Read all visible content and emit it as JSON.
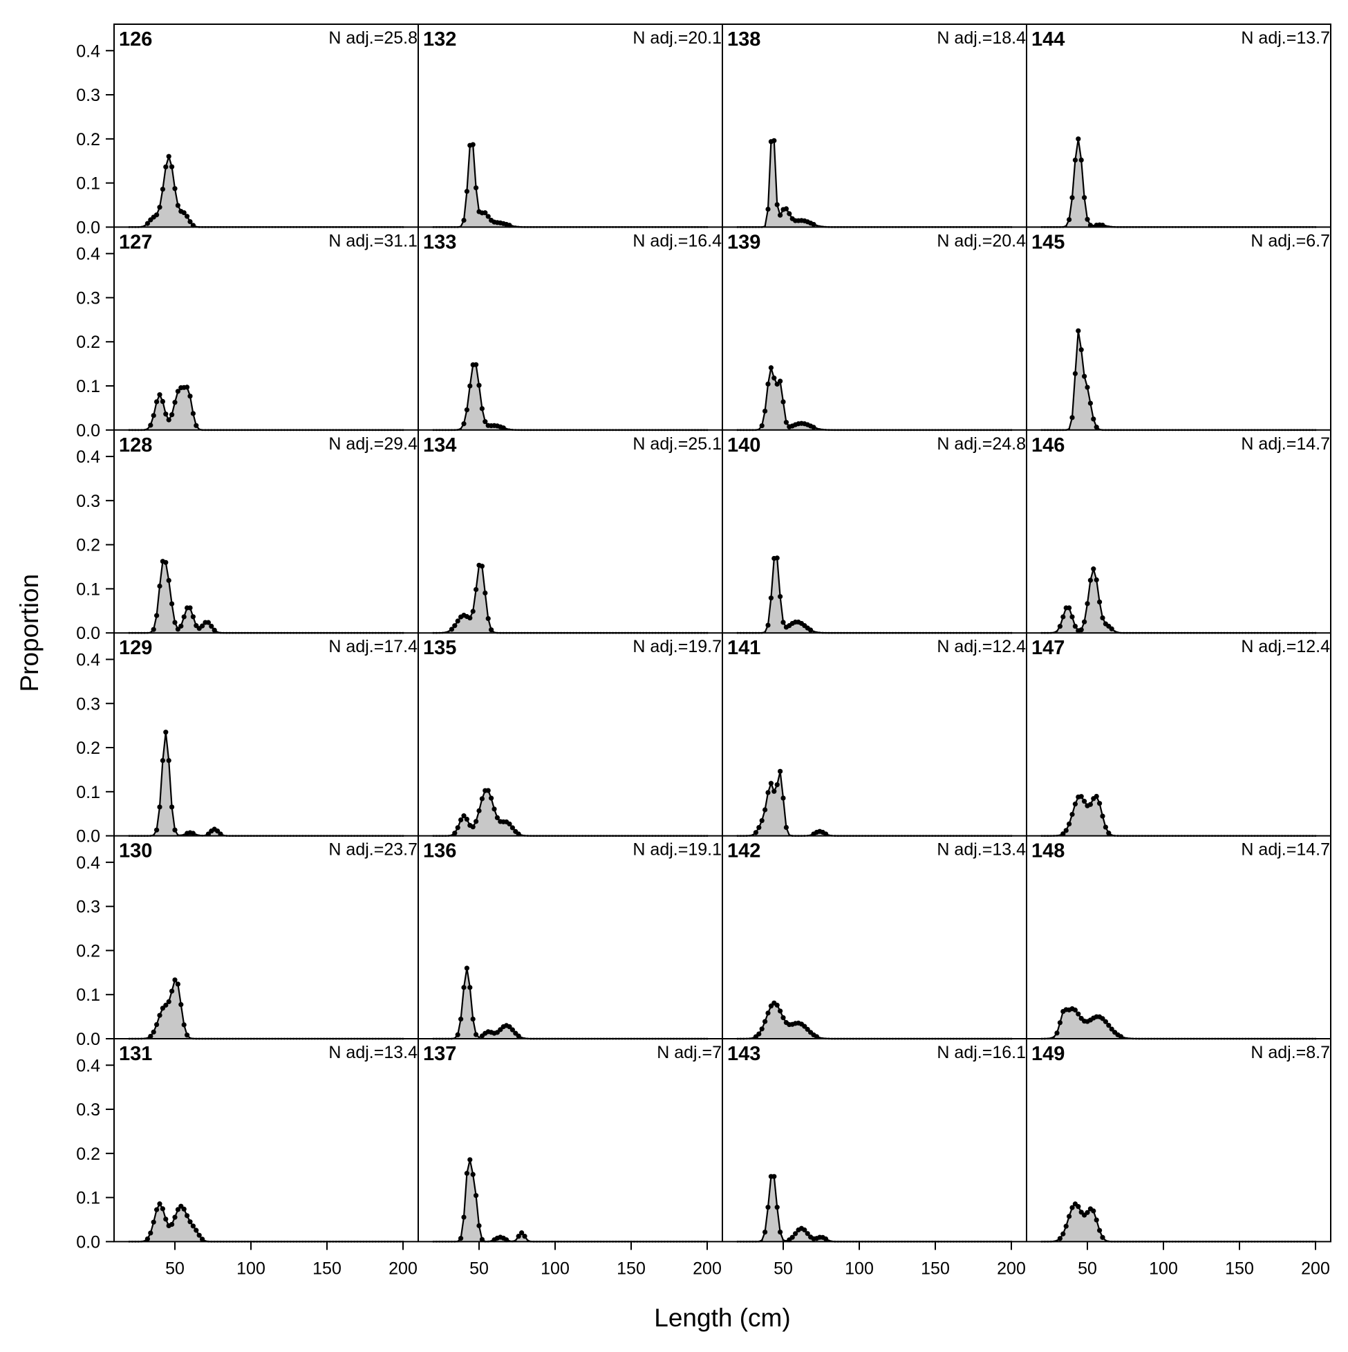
{
  "chart_data": {
    "type": "area",
    "ylabel": "Proportion",
    "xlabel": "Length (cm)",
    "x_ticks": [
      50,
      100,
      150,
      200
    ],
    "y_ticks": [
      0.0,
      0.1,
      0.2,
      0.3,
      0.4
    ],
    "y_tick_labels": [
      "0.0",
      "0.1",
      "0.2",
      "0.3",
      "0.4"
    ],
    "xlim": [
      10,
      210
    ],
    "ylim": [
      0,
      0.46
    ],
    "x_range": [
      20,
      200
    ],
    "x_step": 2,
    "fill_color": "#c8c8c8",
    "line_color": "#000000",
    "panels": [
      {
        "id": "126",
        "nadj": "N adj.=25.8",
        "peaks": [
          [
            46,
            0.16,
            3.5
          ],
          [
            36,
            0.02,
            3
          ],
          [
            56,
            0.03,
            3
          ]
        ]
      },
      {
        "id": "127",
        "nadj": "N adj.=31.1",
        "peaks": [
          [
            40,
            0.08,
            3
          ],
          [
            53,
            0.09,
            3.5
          ],
          [
            59,
            0.07,
            2.5
          ]
        ]
      },
      {
        "id": "128",
        "nadj": "N adj.=29.4",
        "peaks": [
          [
            42,
            0.14,
            2.5
          ],
          [
            46,
            0.08,
            2.5
          ],
          [
            59,
            0.06,
            3
          ],
          [
            71,
            0.025,
            3
          ]
        ]
      },
      {
        "id": "129",
        "nadj": "N adj.=17.4",
        "peaks": [
          [
            44,
            0.235,
            2.5
          ],
          [
            76,
            0.015,
            2.5
          ],
          [
            60,
            0.007,
            3
          ]
        ]
      },
      {
        "id": "130",
        "nadj": "N adj.=23.7",
        "peaks": [
          [
            51,
            0.125,
            3
          ],
          [
            43,
            0.07,
            4
          ]
        ]
      },
      {
        "id": "131",
        "nadj": "N adj.=13.4",
        "peaks": [
          [
            40,
            0.085,
            3.5
          ],
          [
            54,
            0.08,
            4.5
          ],
          [
            63,
            0.02,
            3
          ]
        ]
      },
      {
        "id": "132",
        "nadj": "N adj.=20.1",
        "peaks": [
          [
            45,
            0.205,
            2.2
          ],
          [
            53,
            0.03,
            3
          ],
          [
            62,
            0.01,
            6
          ]
        ]
      },
      {
        "id": "133",
        "nadj": "N adj.=16.4",
        "peaks": [
          [
            47,
            0.155,
            3.2
          ],
          [
            60,
            0.01,
            5
          ]
        ]
      },
      {
        "id": "134",
        "nadj": "N adj.=25.1",
        "peaks": [
          [
            51,
            0.16,
            2.8
          ],
          [
            40,
            0.04,
            4.5
          ]
        ]
      },
      {
        "id": "135",
        "nadj": "N adj.=19.7",
        "peaks": [
          [
            55,
            0.105,
            4.5
          ],
          [
            40,
            0.045,
            3
          ],
          [
            68,
            0.03,
            4
          ]
        ]
      },
      {
        "id": "136",
        "nadj": "N adj.=19.1",
        "peaks": [
          [
            42,
            0.16,
            2.5
          ],
          [
            68,
            0.03,
            4.5
          ],
          [
            56,
            0.015,
            3
          ]
        ]
      },
      {
        "id": "137",
        "nadj": "N adj.=7",
        "peaks": [
          [
            43,
            0.17,
            2
          ],
          [
            47,
            0.11,
            2
          ],
          [
            78,
            0.02,
            2
          ],
          [
            64,
            0.01,
            3
          ]
        ]
      },
      {
        "id": "138",
        "nadj": "N adj.=18.4",
        "peaks": [
          [
            43,
            0.235,
            1.6
          ],
          [
            51,
            0.04,
            3
          ],
          [
            62,
            0.015,
            6
          ]
        ]
      },
      {
        "id": "139",
        "nadj": "N adj.=20.4",
        "peaks": [
          [
            42,
            0.14,
            2.6
          ],
          [
            48,
            0.1,
            2
          ],
          [
            62,
            0.015,
            6
          ]
        ]
      },
      {
        "id": "140",
        "nadj": "N adj.=24.8",
        "peaks": [
          [
            45,
            0.185,
            2.3
          ],
          [
            59,
            0.025,
            5.5
          ]
        ]
      },
      {
        "id": "141",
        "nadj": "N adj.=12.4",
        "peaks": [
          [
            42,
            0.11,
            2.5
          ],
          [
            48,
            0.14,
            2
          ],
          [
            37,
            0.03,
            3
          ],
          [
            74,
            0.01,
            3
          ]
        ]
      },
      {
        "id": "142",
        "nadj": "N adj.=13.4",
        "peaks": [
          [
            44,
            0.08,
            5
          ],
          [
            60,
            0.035,
            6
          ]
        ]
      },
      {
        "id": "143",
        "nadj": "N adj.=16.1",
        "peaks": [
          [
            43,
            0.16,
            2.5
          ],
          [
            62,
            0.03,
            4
          ],
          [
            75,
            0.01,
            3
          ]
        ]
      },
      {
        "id": "144",
        "nadj": "N adj.=13.7",
        "peaks": [
          [
            44,
            0.2,
            2.7
          ],
          [
            58,
            0.005,
            4
          ]
        ]
      },
      {
        "id": "145",
        "nadj": "N adj.=6.7",
        "peaks": [
          [
            44,
            0.2,
            2
          ],
          [
            49,
            0.1,
            3
          ]
        ]
      },
      {
        "id": "146",
        "nadj": "N adj.=14.7",
        "peaks": [
          [
            37,
            0.06,
            3
          ],
          [
            54,
            0.145,
            3.2
          ],
          [
            63,
            0.015,
            3
          ]
        ]
      },
      {
        "id": "147",
        "nadj": "N adj.=12.4",
        "peaks": [
          [
            45,
            0.09,
            4.5
          ],
          [
            56,
            0.085,
            3.5
          ]
        ]
      },
      {
        "id": "148",
        "nadj": "N adj.=14.7",
        "peaks": [
          [
            40,
            0.065,
            5
          ],
          [
            57,
            0.05,
            7
          ],
          [
            34,
            0.03,
            2
          ]
        ]
      },
      {
        "id": "149",
        "nadj": "N adj.=8.7",
        "peaks": [
          [
            42,
            0.085,
            4.5
          ],
          [
            53,
            0.07,
            3.5
          ]
        ]
      }
    ]
  }
}
